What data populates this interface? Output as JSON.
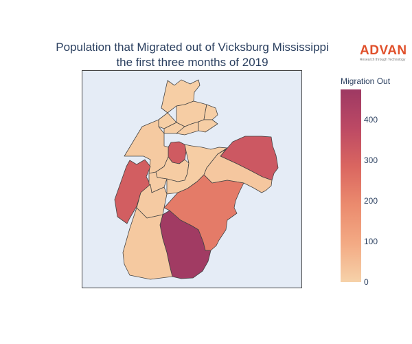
{
  "title": {
    "line1": "Population that Migrated out of Vicksburg Mississippi",
    "line2": "the first three months of 2019"
  },
  "logo": {
    "wordmark": "ADVAN",
    "tagline": "Research through Technology"
  },
  "colorbar": {
    "title": "Migration Out",
    "range": [
      0,
      475
    ],
    "ticks": [
      {
        "value": 0,
        "label": "0"
      },
      {
        "value": 100,
        "label": "100"
      },
      {
        "value": 200,
        "label": "200"
      },
      {
        "value": 300,
        "label": "300"
      },
      {
        "value": 400,
        "label": "400"
      }
    ],
    "colorscale": [
      "#f6d2a9",
      "#f3aa84",
      "#eb8b6e",
      "#da6660",
      "#bc4964",
      "#9e3963"
    ]
  },
  "colors": {
    "map_background": "#e5ecf6",
    "region_border": "#444444"
  },
  "chart_data": {
    "type": "choropleth",
    "variable": "Migration Out",
    "regions": [
      {
        "id": "tract-north-peninsula",
        "value": 10
      },
      {
        "id": "tract-north-central",
        "value": 12
      },
      {
        "id": "tract-north-east",
        "value": 10
      },
      {
        "id": "tract-north-mid-1",
        "value": 8
      },
      {
        "id": "tract-north-mid-2",
        "value": 9
      },
      {
        "id": "tract-north-mid-3",
        "value": 11
      },
      {
        "id": "tract-north-mid-4",
        "value": 10
      },
      {
        "id": "tract-center-small",
        "value": 320
      },
      {
        "id": "tract-west-peninsula",
        "value": 20
      },
      {
        "id": "tract-center-west",
        "value": 15
      },
      {
        "id": "tract-west",
        "value": 310
      },
      {
        "id": "tract-center-south",
        "value": 14
      },
      {
        "id": "tract-center",
        "value": 12
      },
      {
        "id": "tract-east",
        "value": 330
      },
      {
        "id": "tract-east-mid",
        "value": 25
      },
      {
        "id": "tract-southwest",
        "value": 18
      },
      {
        "id": "tract-southeast",
        "value": 230
      },
      {
        "id": "tract-south",
        "value": 465
      },
      {
        "id": "tract-south-west",
        "value": 22
      }
    ]
  }
}
